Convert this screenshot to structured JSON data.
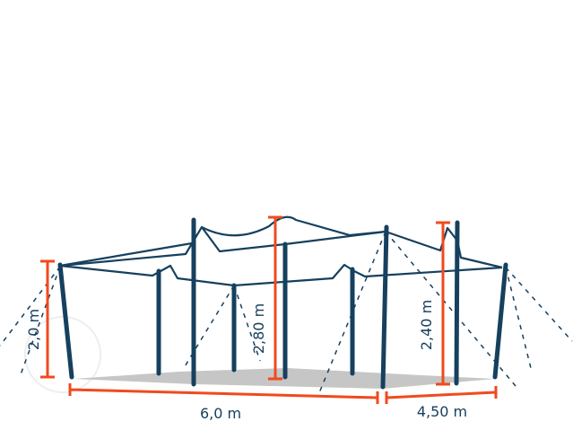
{
  "colors": {
    "frame": "#16405e",
    "dimension": "#f04a1e",
    "ground": "#c6c6c6"
  },
  "dimensions": {
    "side_pole_height": "2,0 m",
    "center_pole_height": "2,80 m",
    "high_pole_height": "2,40 m",
    "length": "6,0 m",
    "width": "4,50 m"
  }
}
